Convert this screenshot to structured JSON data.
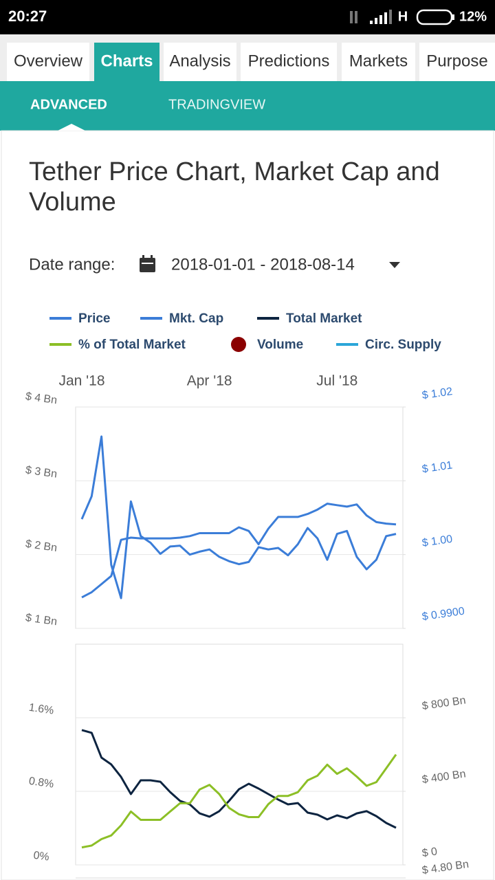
{
  "status_bar": {
    "time": "20:27",
    "network": "H",
    "battery": "12%"
  },
  "tabs": {
    "items": [
      "Overview",
      "Charts",
      "Analysis",
      "Predictions",
      "Markets",
      "Purpose"
    ],
    "active": 1
  },
  "subtabs": {
    "items": [
      "ADVANCED",
      "TRADINGVIEW"
    ],
    "active": 0
  },
  "title": "Tether Price Chart, Market Cap and Volume",
  "date_range": {
    "label": "Date range:",
    "value": "2018-01-01 - 2018-08-14"
  },
  "chart_data": [
    {
      "type": "line",
      "categories": [
        "Jan '18",
        null,
        null,
        null,
        null,
        null,
        null,
        null,
        null,
        null,
        null,
        null,
        null,
        "Apr '18",
        null,
        null,
        null,
        null,
        null,
        null,
        null,
        null,
        null,
        null,
        null,
        null,
        "Jul '18",
        null,
        null,
        null,
        null,
        null,
        null
      ],
      "ylim": [
        1,
        4
      ],
      "yticks": [
        {
          "value": 1,
          "label": "$ 1 Bn"
        },
        {
          "value": 2,
          "label": "$ 2 Bn"
        },
        {
          "value": 3,
          "label": "$ 3 Bn"
        },
        {
          "value": 4,
          "label": "$ 4 Bn"
        }
      ],
      "y2lim": [
        0.99,
        1.02
      ],
      "y2ticks": [
        {
          "value": 0.99,
          "label": "$ 0.9900"
        },
        {
          "value": 1,
          "label": "$ 1.00"
        },
        {
          "value": 1.01,
          "label": "$ 1.01"
        },
        {
          "value": 1.02,
          "label": "$ 1.02"
        }
      ],
      "grid": true,
      "series": [
        {
          "name": "Price",
          "color": "#3b7dd8",
          "axis": "y2",
          "values": [
            1.0048,
            1.0079,
            1.016,
            0.9986,
            0.9941,
            1.0072,
            1.0025,
            1.0016,
            1.0001,
            1.0011,
            1.0012,
            1.0,
            1.0004,
            1.0007,
            0.9997,
            0.9991,
            0.9987,
            0.999,
            1.001,
            1.0007,
            1.0009,
            0.9999,
            1.0014,
            1.0036,
            1.0022,
            0.9993,
            1.0028,
            1.0032,
            0.9997,
            0.998,
            0.9993,
            1.0025,
            1.0028
          ]
        },
        {
          "name": "Mkt. Cap",
          "color": "#3b7dd8",
          "values": [
            1.42,
            1.49,
            1.6,
            1.71,
            2.2,
            2.23,
            2.22,
            2.22,
            2.22,
            2.22,
            2.23,
            2.25,
            2.29,
            2.29,
            2.29,
            2.29,
            2.37,
            2.32,
            2.14,
            2.35,
            2.51,
            2.51,
            2.51,
            2.55,
            2.61,
            2.69,
            2.67,
            2.65,
            2.68,
            2.53,
            2.44,
            2.42,
            2.41
          ]
        }
      ]
    },
    {
      "type": "line",
      "ylim": [
        0,
        2.4
      ],
      "yticks": [
        {
          "value": 0,
          "label": "0%"
        },
        {
          "value": 0.8,
          "label": "0.8%"
        },
        {
          "value": 1.6,
          "label": "1.6%"
        }
      ],
      "y2lim": [
        0,
        1200
      ],
      "y2ticks": [
        {
          "value": 0,
          "label": "$ 0"
        },
        {
          "value": 400,
          "label": "$ 400 Bn"
        },
        {
          "value": 800,
          "label": "$ 800 Bn"
        }
      ],
      "grid": true,
      "series": [
        {
          "name": "Total Market",
          "color": "#0d2440",
          "axis": "y2",
          "values": [
            733,
            718,
            583,
            546,
            478,
            385,
            460,
            460,
            452,
            396,
            348,
            329,
            280,
            262,
            292,
            348,
            411,
            441,
            415,
            385,
            355,
            329,
            336,
            284,
            273,
            247,
            269,
            254,
            280,
            292,
            265,
            228,
            202
          ]
        },
        {
          "name": "% of Total Market",
          "color": "#8cbf26",
          "values": [
            0.19,
            0.21,
            0.28,
            0.32,
            0.43,
            0.58,
            0.49,
            0.49,
            0.49,
            0.58,
            0.67,
            0.67,
            0.82,
            0.87,
            0.77,
            0.62,
            0.55,
            0.52,
            0.52,
            0.66,
            0.75,
            0.75,
            0.79,
            0.92,
            0.97,
            1.09,
            0.99,
            1.05,
            0.96,
            0.86,
            0.9,
            1.05,
            1.2
          ]
        }
      ]
    },
    {
      "type": "bar",
      "y2ticks": [
        {
          "value": 4.8,
          "label": "$ 4.80 Bn"
        }
      ],
      "series": [
        {
          "name": "Volume",
          "color": "#8b0000",
          "marker": "circle"
        },
        {
          "name": "Circ. Supply",
          "color": "#2ba6d9"
        }
      ]
    }
  ]
}
